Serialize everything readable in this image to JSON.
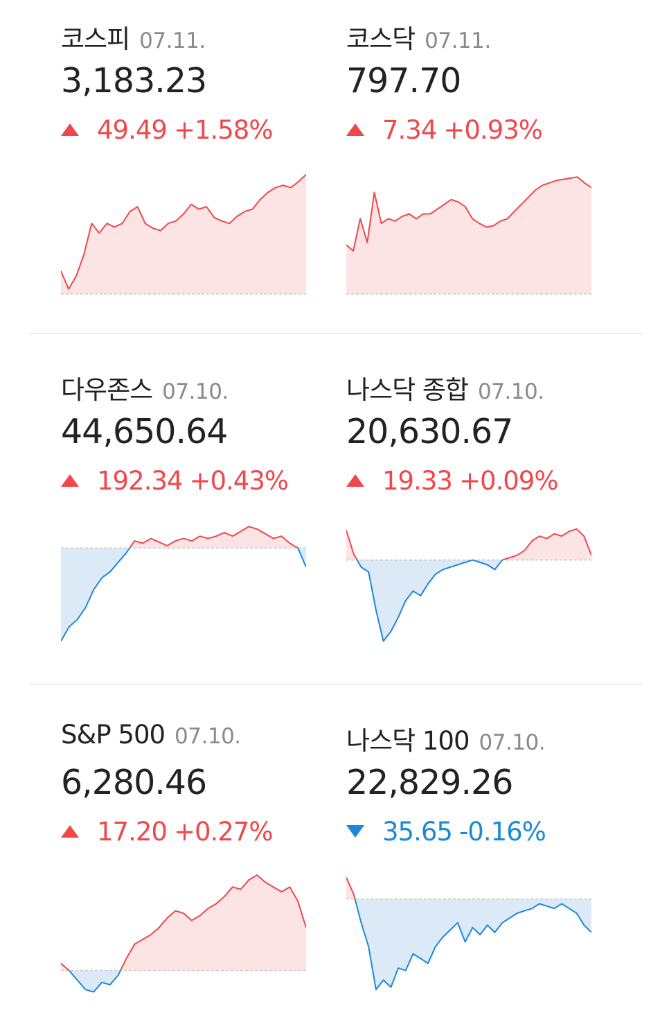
{
  "colors": {
    "up": "#f0474a",
    "down": "#1989d8",
    "up_fill": "#fde4e4",
    "down_fill": "#dceaf8",
    "baseline": "#c8c8c8"
  },
  "indices": [
    {
      "name": "코스피",
      "date": "07.11.",
      "value": "3,183.23",
      "direction": "up",
      "change": "49.49",
      "percent": "+1.58%",
      "chart_data": {
        "type": "area",
        "baseline_position": 1.0,
        "points": [
          0.18,
          0.03,
          0.14,
          0.32,
          0.58,
          0.5,
          0.58,
          0.55,
          0.58,
          0.68,
          0.72,
          0.58,
          0.54,
          0.52,
          0.58,
          0.6,
          0.66,
          0.74,
          0.7,
          0.72,
          0.63,
          0.6,
          0.58,
          0.64,
          0.68,
          0.7,
          0.78,
          0.84,
          0.88,
          0.9,
          0.88,
          0.93,
          0.99
        ]
      }
    },
    {
      "name": "코스닥",
      "date": "07.11.",
      "value": "797.70",
      "direction": "up",
      "change": "7.34",
      "percent": "+0.93%",
      "chart_data": {
        "type": "area",
        "baseline_position": 1.0,
        "points": [
          0.4,
          0.35,
          0.62,
          0.42,
          0.84,
          0.58,
          0.62,
          0.6,
          0.64,
          0.66,
          0.62,
          0.66,
          0.66,
          0.7,
          0.74,
          0.78,
          0.76,
          0.72,
          0.62,
          0.58,
          0.55,
          0.56,
          0.6,
          0.62,
          0.68,
          0.74,
          0.8,
          0.86,
          0.9,
          0.92,
          0.94,
          0.95,
          0.96,
          0.97,
          0.92,
          0.88
        ]
      }
    },
    {
      "name": "다우존스",
      "date": "07.10.",
      "value": "44,650.64",
      "direction": "up",
      "change": "192.34",
      "percent": "+0.43%",
      "chart_data": {
        "type": "area",
        "baseline_position": 0.8,
        "points": [
          0.02,
          0.14,
          0.2,
          0.3,
          0.45,
          0.55,
          0.6,
          0.68,
          0.76,
          0.86,
          0.84,
          0.88,
          0.85,
          0.82,
          0.86,
          0.88,
          0.86,
          0.9,
          0.88,
          0.9,
          0.93,
          0.9,
          0.94,
          0.98,
          0.96,
          0.92,
          0.88,
          0.9,
          0.84,
          0.8,
          0.64
        ]
      }
    },
    {
      "name": "나스닥 종합",
      "date": "07.10.",
      "value": "20,630.67",
      "direction": "up",
      "change": "19.33",
      "percent": "+0.09%",
      "chart_data": {
        "type": "area",
        "baseline_position": 0.7,
        "points": [
          0.95,
          0.75,
          0.64,
          0.6,
          0.28,
          0.02,
          0.1,
          0.22,
          0.36,
          0.44,
          0.4,
          0.5,
          0.58,
          0.62,
          0.64,
          0.66,
          0.68,
          0.7,
          0.68,
          0.66,
          0.62,
          0.7,
          0.72,
          0.74,
          0.78,
          0.86,
          0.9,
          0.88,
          0.92,
          0.9,
          0.94,
          0.96,
          0.9,
          0.74
        ]
      }
    },
    {
      "name": "S&P 500",
      "date": "07.10.",
      "value": "6,280.46",
      "direction": "up",
      "change": "17.20",
      "percent": "+0.27%",
      "chart_data": {
        "type": "area",
        "baseline_position": 0.2,
        "points": [
          0.26,
          0.2,
          0.12,
          0.04,
          0.02,
          0.1,
          0.08,
          0.16,
          0.3,
          0.42,
          0.46,
          0.5,
          0.56,
          0.64,
          0.7,
          0.68,
          0.62,
          0.66,
          0.72,
          0.76,
          0.82,
          0.9,
          0.88,
          0.96,
          1.0,
          0.94,
          0.9,
          0.86,
          0.9,
          0.78,
          0.56
        ]
      }
    },
    {
      "name": "나스닥 100",
      "date": "07.10.",
      "value": "22,829.26",
      "direction": "down",
      "change": "35.65",
      "percent": "-0.16%",
      "chart_data": {
        "type": "area",
        "baseline_position": 0.8,
        "points": [
          0.98,
          0.84,
          0.6,
          0.4,
          0.04,
          0.12,
          0.06,
          0.22,
          0.2,
          0.34,
          0.3,
          0.26,
          0.4,
          0.48,
          0.54,
          0.6,
          0.44,
          0.56,
          0.5,
          0.58,
          0.52,
          0.6,
          0.64,
          0.68,
          0.7,
          0.72,
          0.76,
          0.74,
          0.72,
          0.76,
          0.72,
          0.68,
          0.58,
          0.52
        ]
      }
    }
  ]
}
